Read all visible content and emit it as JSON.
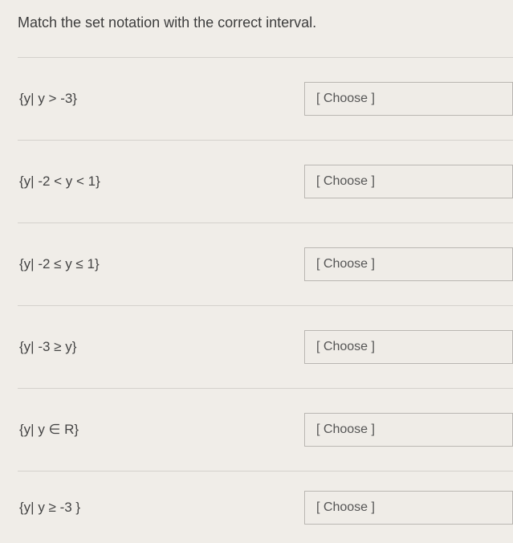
{
  "prompt": "Match the set notation with the correct interval.",
  "dropdown_placeholder": "[ Choose ]",
  "rows": [
    {
      "notation": "{y| y > -3}"
    },
    {
      "notation": "{y| -2 < y < 1}"
    },
    {
      "notation": "{y| -2 ≤ y ≤ 1}"
    },
    {
      "notation": "{y| -3 ≥ y}"
    },
    {
      "notation": "{y| y ∈ R}"
    },
    {
      "notation": "{y| y ≥ -3 }"
    }
  ],
  "colors": {
    "background": "#f0ede8",
    "border": "#d4d1cc",
    "text": "#3d3d3d",
    "dropdown_border": "#b8b5b0"
  }
}
